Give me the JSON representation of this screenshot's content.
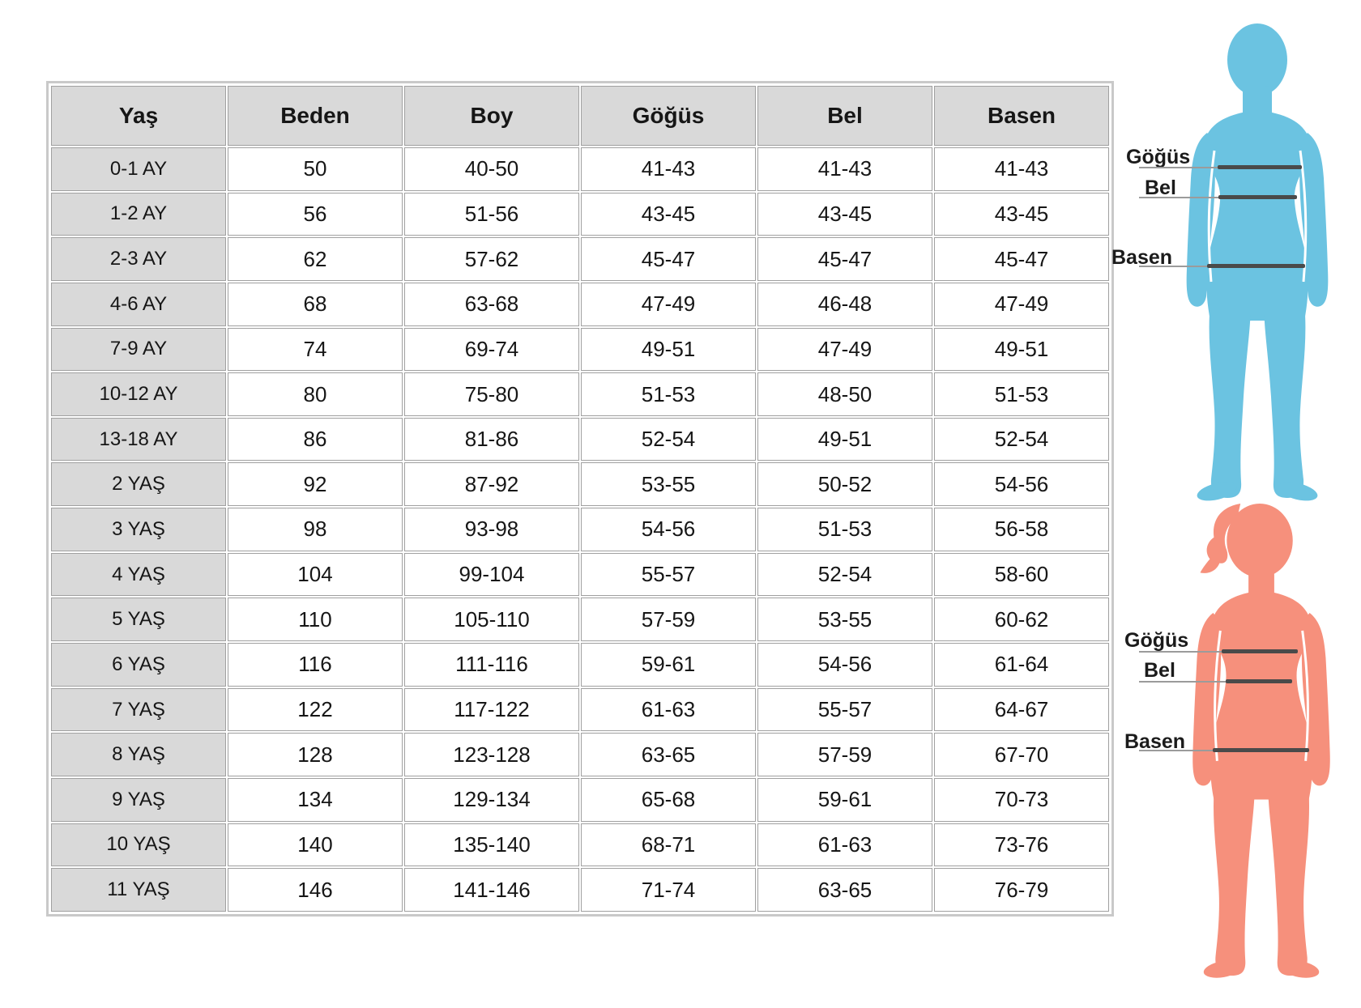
{
  "chart_data": {
    "type": "table",
    "columns": [
      "Yaş",
      "Beden",
      "Boy",
      "Göğüs",
      "Bel",
      "Basen"
    ],
    "rows": [
      [
        "0-1 AY",
        "50",
        "40-50",
        "41-43",
        "41-43",
        "41-43"
      ],
      [
        "1-2 AY",
        "56",
        "51-56",
        "43-45",
        "43-45",
        "43-45"
      ],
      [
        "2-3 AY",
        "62",
        "57-62",
        "45-47",
        "45-47",
        "45-47"
      ],
      [
        "4-6 AY",
        "68",
        "63-68",
        "47-49",
        "46-48",
        "47-49"
      ],
      [
        "7-9 AY",
        "74",
        "69-74",
        "49-51",
        "47-49",
        "49-51"
      ],
      [
        "10-12 AY",
        "80",
        "75-80",
        "51-53",
        "48-50",
        "51-53"
      ],
      [
        "13-18 AY",
        "86",
        "81-86",
        "52-54",
        "49-51",
        "52-54"
      ],
      [
        "2 YAŞ",
        "92",
        "87-92",
        "53-55",
        "50-52",
        "54-56"
      ],
      [
        "3 YAŞ",
        "98",
        "93-98",
        "54-56",
        "51-53",
        "56-58"
      ],
      [
        "4 YAŞ",
        "104",
        "99-104",
        "55-57",
        "52-54",
        "58-60"
      ],
      [
        "5 YAŞ",
        "110",
        "105-110",
        "57-59",
        "53-55",
        "60-62"
      ],
      [
        "6 YAŞ",
        "116",
        "111-116",
        "59-61",
        "54-56",
        "61-64"
      ],
      [
        "7 YAŞ",
        "122",
        "117-122",
        "61-63",
        "55-57",
        "64-67"
      ],
      [
        "8 YAŞ",
        "128",
        "123-128",
        "63-65",
        "57-59",
        "67-70"
      ],
      [
        "9 YAŞ",
        "134",
        "129-134",
        "65-68",
        "59-61",
        "70-73"
      ],
      [
        "10 YAŞ",
        "140",
        "135-140",
        "68-71",
        "61-63",
        "73-76"
      ],
      [
        "11 YAŞ",
        "146",
        "141-146",
        "71-74",
        "63-65",
        "76-79"
      ]
    ]
  },
  "figures": {
    "boy": {
      "color": "#6bc3e1",
      "labels": {
        "chest": "Göğüs",
        "waist": "Bel",
        "hip": "Basen"
      }
    },
    "girl": {
      "color": "#f6907c",
      "labels": {
        "chest": "Göğüs",
        "waist": "Bel",
        "hip": "Basen"
      }
    }
  },
  "colors": {
    "header_bg": "#d9d9d9",
    "cell_border": "#a0a0a0",
    "table_frame": "#c9c9c9",
    "text": "#161616",
    "leader_line": "#9b9b9b",
    "measure_line": "#4a4a4a"
  }
}
